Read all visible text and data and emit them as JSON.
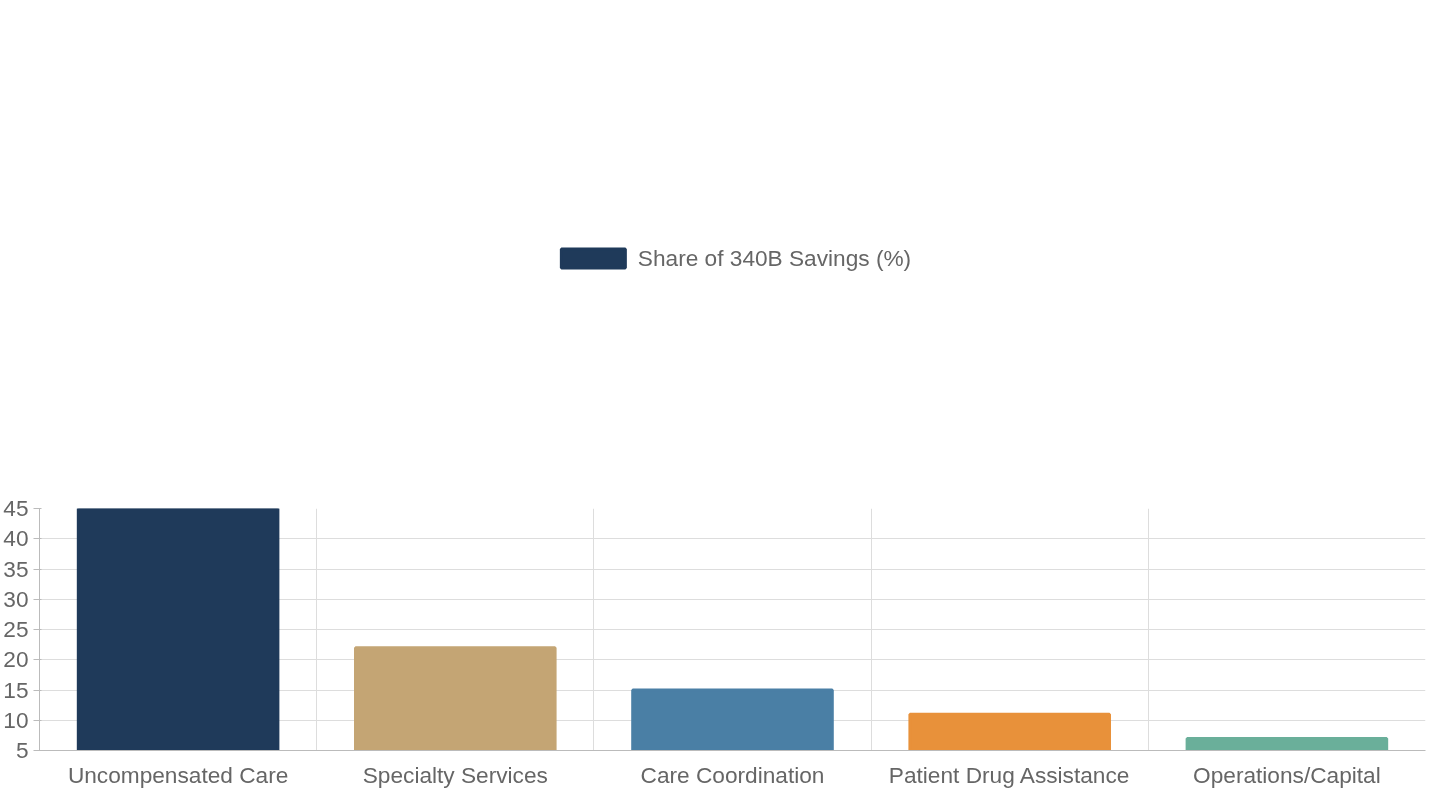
{
  "chart_data": {
    "type": "bar",
    "categories": [
      "Uncompensated Care",
      "Specialty Services",
      "Care Coordination",
      "Patient Drug Assistance",
      "Operations/Capital"
    ],
    "series": [
      {
        "name": "Share of 340B Savings (%)",
        "colors": [
          "#1f3a5a",
          "#c4a574",
          "#4a7fa5",
          "#e8913a",
          "#6aaf9a"
        ],
        "values": [
          45,
          22,
          15,
          11,
          7
        ]
      }
    ],
    "ylim": [
      5,
      45
    ],
    "yticks": [
      5,
      10,
      15,
      20,
      25,
      30,
      35,
      40,
      45
    ],
    "grid": true,
    "legend": "top"
  }
}
